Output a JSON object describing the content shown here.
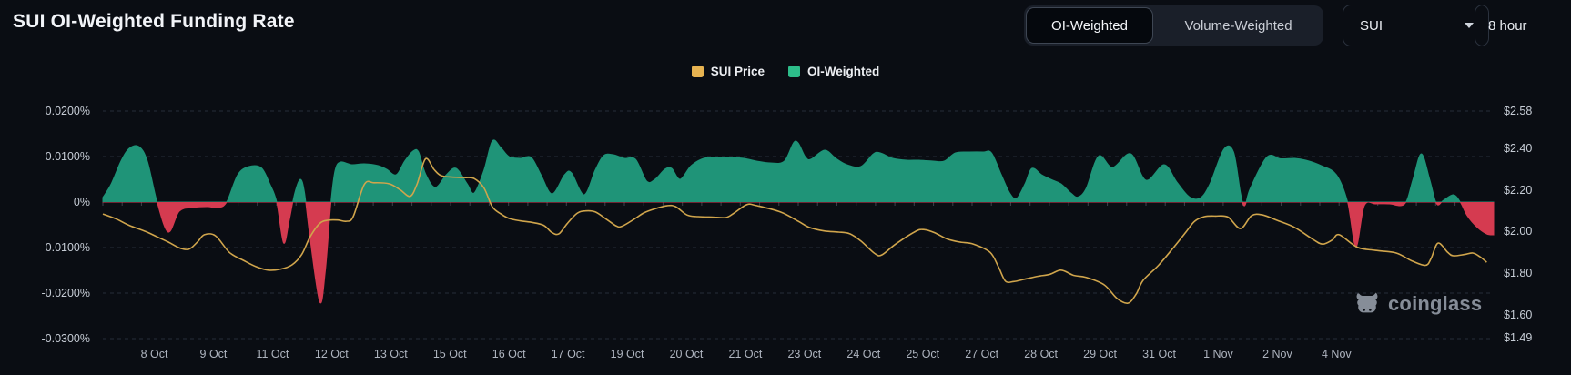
{
  "header": {
    "title": "SUI OI-Weighted Funding Rate",
    "weight_toggle": {
      "options": [
        "OI-Weighted",
        "Volume-Weighted"
      ],
      "active": "OI-Weighted"
    },
    "symbol_select": {
      "value": "SUI"
    },
    "interval_select": {
      "value": "8 hour"
    }
  },
  "legend": {
    "items": [
      {
        "label": "SUI Price",
        "color": "#e7b351"
      },
      {
        "label": "OI-Weighted",
        "color": "#2dbd8a"
      }
    ]
  },
  "watermark": {
    "text": "coinglass"
  },
  "chart_data": {
    "type": "area",
    "title": "SUI OI-Weighted Funding Rate",
    "grid": {
      "style": "dashed",
      "color": "#272d38",
      "zero_line_color": "#3a4150"
    },
    "x_axis": {
      "tick_labels": [
        "8 Oct",
        "9 Oct",
        "11 Oct",
        "12 Oct",
        "13 Oct",
        "15 Oct",
        "16 Oct",
        "17 Oct",
        "19 Oct",
        "20 Oct",
        "21 Oct",
        "23 Oct",
        "24 Oct",
        "25 Oct",
        "27 Oct",
        "28 Oct",
        "29 Oct",
        "31 Oct",
        "1 Nov",
        "2 Nov",
        "4 Nov"
      ],
      "tick_pct": [
        3.7,
        7.95,
        12.2,
        16.45,
        20.7,
        24.95,
        29.2,
        33.45,
        37.7,
        41.95,
        46.2,
        50.45,
        54.7,
        58.95,
        63.2,
        67.45,
        71.7,
        75.95,
        80.2,
        84.45,
        88.7
      ]
    },
    "y_left": {
      "name": "funding rate",
      "tick_labels": [
        "0.0200%",
        "0.0100%",
        "0%",
        "-0.0100%",
        "-0.0200%",
        "-0.0300%"
      ],
      "tick_values": [
        0.02,
        0.01,
        0,
        -0.01,
        -0.02,
        -0.03
      ],
      "range": [
        -0.03,
        0.02
      ]
    },
    "y_right": {
      "name": "SUI price",
      "tick_labels": [
        "$2.58",
        "$2.40",
        "$2.20",
        "$2.00",
        "$1.80",
        "$1.60",
        "$1.49"
      ],
      "tick_values": [
        2.58,
        2.4,
        2.2,
        2.0,
        1.8,
        1.6,
        1.49
      ],
      "range": [
        1.49,
        2.58
      ]
    },
    "series": [
      {
        "name": "OI-Weighted",
        "type": "area",
        "axis": "left",
        "unit": "%",
        "color_positive": "#1f9478",
        "color_negative": "#d53b50",
        "points": [
          [
            0,
            0.001
          ],
          [
            0.6,
            0.004
          ],
          [
            1.3,
            0.009
          ],
          [
            1.9,
            0.0118
          ],
          [
            2.6,
            0.0122
          ],
          [
            3.2,
            0.009
          ],
          [
            3.9,
            0
          ],
          [
            4.7,
            -0.0066
          ],
          [
            5.5,
            -0.002
          ],
          [
            6.5,
            -0.0012
          ],
          [
            7.5,
            -0.001
          ],
          [
            8.3,
            -0.0012
          ],
          [
            8.9,
            0
          ],
          [
            9.7,
            0.006
          ],
          [
            10.5,
            0.0078
          ],
          [
            11.4,
            0.0075
          ],
          [
            12,
            0.004
          ],
          [
            12.5,
            0
          ],
          [
            13,
            -0.009
          ],
          [
            13.4,
            -0.004
          ],
          [
            13.8,
            0.002
          ],
          [
            14.2,
            0.005
          ],
          [
            14.5,
            0.002
          ],
          [
            14.9,
            -0.008
          ],
          [
            15.6,
            -0.022
          ],
          [
            16,
            -0.015
          ],
          [
            16.4,
            0
          ],
          [
            16.7,
            0.007
          ],
          [
            17.1,
            0.0088
          ],
          [
            17.9,
            0.0082
          ],
          [
            18.8,
            0.0084
          ],
          [
            19.8,
            0.008
          ],
          [
            20.4,
            0.0072
          ],
          [
            21.1,
            0.006
          ],
          [
            21.7,
            0.009
          ],
          [
            22.3,
            0.0112
          ],
          [
            22.7,
            0.011
          ],
          [
            23.2,
            0.0062
          ],
          [
            23.9,
            0.0032
          ],
          [
            24.7,
            0.006
          ],
          [
            25.4,
            0.0074
          ],
          [
            26.2,
            0.004
          ],
          [
            26.7,
            0.002
          ],
          [
            27.4,
            0.007
          ],
          [
            28,
            0.0134
          ],
          [
            28.6,
            0.012
          ],
          [
            29.2,
            0.01
          ],
          [
            30,
            0.0096
          ],
          [
            30.8,
            0.0098
          ],
          [
            31.5,
            0.006
          ],
          [
            32.3,
            0.0018
          ],
          [
            33.2,
            0.006
          ],
          [
            33.7,
            0.0064
          ],
          [
            34.6,
            0.0016
          ],
          [
            35.4,
            0.007
          ],
          [
            36,
            0.0102
          ],
          [
            36.7,
            0.0104
          ],
          [
            37.5,
            0.0096
          ],
          [
            38.3,
            0.0094
          ],
          [
            39.1,
            0.0046
          ],
          [
            39.7,
            0.005
          ],
          [
            40.4,
            0.0072
          ],
          [
            40.9,
            0.0074
          ],
          [
            41.5,
            0.005
          ],
          [
            42.3,
            0.008
          ],
          [
            43.2,
            0.0096
          ],
          [
            44.1,
            0.0098
          ],
          [
            45.1,
            0.0098
          ],
          [
            46.1,
            0.0096
          ],
          [
            47,
            0.009
          ],
          [
            48,
            0.0086
          ],
          [
            49,
            0.009
          ],
          [
            49.8,
            0.0134
          ],
          [
            50.5,
            0.01
          ],
          [
            50.9,
            0.0094
          ],
          [
            51.9,
            0.0114
          ],
          [
            52.7,
            0.0096
          ],
          [
            53.5,
            0.0082
          ],
          [
            54.5,
            0.0078
          ],
          [
            55.4,
            0.0106
          ],
          [
            55.9,
            0.0108
          ],
          [
            56.8,
            0.0096
          ],
          [
            57.8,
            0.0092
          ],
          [
            58.7,
            0.0092
          ],
          [
            59.7,
            0.009
          ],
          [
            60.5,
            0.009
          ],
          [
            61.3,
            0.0108
          ],
          [
            62.3,
            0.011
          ],
          [
            63.3,
            0.011
          ],
          [
            63.9,
            0.0108
          ],
          [
            64.6,
            0.006
          ],
          [
            65.2,
            0.002
          ],
          [
            65.7,
            0.0008
          ],
          [
            66.3,
            0.004
          ],
          [
            66.8,
            0.0074
          ],
          [
            67.5,
            0.006
          ],
          [
            68.3,
            0.0048
          ],
          [
            68.9,
            0.004
          ],
          [
            69.6,
            0.002
          ],
          [
            70.1,
            0.0011
          ],
          [
            70.7,
            0.003
          ],
          [
            71.6,
            0.0101
          ],
          [
            72.6,
            0.0076
          ],
          [
            73.9,
            0.0106
          ],
          [
            75,
            0.0048
          ],
          [
            76.3,
            0.0082
          ],
          [
            77.2,
            0.0045
          ],
          [
            78.1,
            0.0012
          ],
          [
            78.9,
            0.0009
          ],
          [
            79.6,
            0.004
          ],
          [
            80.6,
            0.0116
          ],
          [
            81.3,
            0.011
          ],
          [
            81.8,
            0.002
          ],
          [
            82.1,
            -0.0008
          ],
          [
            82.5,
            0.003
          ],
          [
            83.7,
            0.0099
          ],
          [
            84.7,
            0.0095
          ],
          [
            85.7,
            0.0096
          ],
          [
            86.5,
            0.0092
          ],
          [
            87.6,
            0.008
          ],
          [
            88.7,
            0.006
          ],
          [
            89.5,
            0
          ],
          [
            90.1,
            -0.0098
          ],
          [
            90.7,
            -0.0008
          ],
          [
            91.5,
            -0.0004
          ],
          [
            92.5,
            -0.0004
          ],
          [
            93.6,
            -0.0004
          ],
          [
            94.2,
            0.005
          ],
          [
            94.8,
            0.0106
          ],
          [
            95.4,
            0.005
          ],
          [
            95.9,
            -0.0004
          ],
          [
            96.4,
            0.0004
          ],
          [
            97.1,
            0.0016
          ],
          [
            97.6,
            0
          ],
          [
            98.1,
            -0.003
          ],
          [
            98.8,
            -0.0055
          ],
          [
            99.5,
            -0.007
          ],
          [
            100,
            -0.0072
          ]
        ]
      },
      {
        "name": "SUI Price",
        "type": "line",
        "axis": "right",
        "unit": "USD",
        "color": "#d0a54c",
        "points": [
          [
            0,
            2.085
          ],
          [
            1,
            2.06
          ],
          [
            1.9,
            2.03
          ],
          [
            3.1,
            2.0
          ],
          [
            3.9,
            1.975
          ],
          [
            4.7,
            1.95
          ],
          [
            5.5,
            1.922
          ],
          [
            6.2,
            1.916
          ],
          [
            6.8,
            1.95
          ],
          [
            7.3,
            1.985
          ],
          [
            8.1,
            1.98
          ],
          [
            9.1,
            1.9
          ],
          [
            10.1,
            1.862
          ],
          [
            11,
            1.832
          ],
          [
            11.9,
            1.815
          ],
          [
            12.8,
            1.82
          ],
          [
            13.6,
            1.84
          ],
          [
            14.3,
            1.89
          ],
          [
            14.9,
            1.975
          ],
          [
            15.6,
            2.04
          ],
          [
            16.2,
            2.055
          ],
          [
            16.9,
            2.056
          ],
          [
            17.5,
            2.05
          ],
          [
            18,
            2.072
          ],
          [
            18.8,
            2.227
          ],
          [
            19.5,
            2.235
          ],
          [
            20.6,
            2.23
          ],
          [
            21.4,
            2.2
          ],
          [
            22.1,
            2.17
          ],
          [
            22.6,
            2.23
          ],
          [
            23.2,
            2.35
          ],
          [
            23.8,
            2.3
          ],
          [
            24.3,
            2.27
          ],
          [
            25.1,
            2.262
          ],
          [
            26,
            2.26
          ],
          [
            26.7,
            2.255
          ],
          [
            27.4,
            2.21
          ],
          [
            28,
            2.12
          ],
          [
            28.6,
            2.086
          ],
          [
            29.2,
            2.064
          ],
          [
            30,
            2.052
          ],
          [
            30.8,
            2.045
          ],
          [
            31.7,
            2.03
          ],
          [
            32.3,
            1.995
          ],
          [
            32.8,
            1.99
          ],
          [
            33.4,
            2.04
          ],
          [
            34.1,
            2.088
          ],
          [
            34.7,
            2.1
          ],
          [
            35.4,
            2.095
          ],
          [
            36.2,
            2.06
          ],
          [
            36.9,
            2.028
          ],
          [
            37.3,
            2.025
          ],
          [
            38.2,
            2.06
          ],
          [
            38.9,
            2.09
          ],
          [
            39.7,
            2.11
          ],
          [
            40.6,
            2.125
          ],
          [
            41.2,
            2.12
          ],
          [
            42,
            2.08
          ],
          [
            42.8,
            2.072
          ],
          [
            43.8,
            2.07
          ],
          [
            44.8,
            2.068
          ],
          [
            45.4,
            2.09
          ],
          [
            46.3,
            2.13
          ],
          [
            47,
            2.125
          ],
          [
            48.7,
            2.095
          ],
          [
            50,
            2.05
          ],
          [
            50.8,
            2.02
          ],
          [
            51.9,
            2.003
          ],
          [
            52.9,
            1.998
          ],
          [
            53.7,
            1.99
          ],
          [
            54.5,
            1.955
          ],
          [
            55.5,
            1.895
          ],
          [
            56,
            1.888
          ],
          [
            57,
            1.94
          ],
          [
            58.4,
            2.0
          ],
          [
            59,
            2.01
          ],
          [
            59.8,
            1.995
          ],
          [
            60.7,
            1.965
          ],
          [
            61.6,
            1.95
          ],
          [
            62.6,
            1.94
          ],
          [
            63.8,
            1.9
          ],
          [
            64.4,
            1.83
          ],
          [
            64.9,
            1.762
          ],
          [
            65.5,
            1.76
          ],
          [
            66.2,
            1.77
          ],
          [
            67.2,
            1.785
          ],
          [
            68.1,
            1.795
          ],
          [
            68.9,
            1.815
          ],
          [
            69.8,
            1.79
          ],
          [
            70.7,
            1.78
          ],
          [
            72,
            1.744
          ],
          [
            72.9,
            1.68
          ],
          [
            73.7,
            1.656
          ],
          [
            74.3,
            1.7
          ],
          [
            74.8,
            1.766
          ],
          [
            75.9,
            1.838
          ],
          [
            77,
            1.925
          ],
          [
            77.9,
            2.0
          ],
          [
            78.5,
            2.05
          ],
          [
            79.2,
            2.072
          ],
          [
            80,
            2.075
          ],
          [
            80.9,
            2.07
          ],
          [
            81.8,
            2.015
          ],
          [
            82.6,
            2.077
          ],
          [
            83.4,
            2.08
          ],
          [
            84.4,
            2.055
          ],
          [
            85.7,
            2.02
          ],
          [
            87,
            1.963
          ],
          [
            87.7,
            1.94
          ],
          [
            88.4,
            1.96
          ],
          [
            88.9,
            1.985
          ],
          [
            90.2,
            1.925
          ],
          [
            91.5,
            1.91
          ],
          [
            93,
            1.897
          ],
          [
            94.1,
            1.86
          ],
          [
            95.1,
            1.838
          ],
          [
            95.5,
            1.87
          ],
          [
            96,
            1.945
          ],
          [
            96.7,
            1.9
          ],
          [
            97.1,
            1.884
          ],
          [
            97.9,
            1.89
          ],
          [
            98.5,
            1.897
          ],
          [
            99,
            1.88
          ],
          [
            99.5,
            1.853
          ]
        ]
      }
    ]
  }
}
